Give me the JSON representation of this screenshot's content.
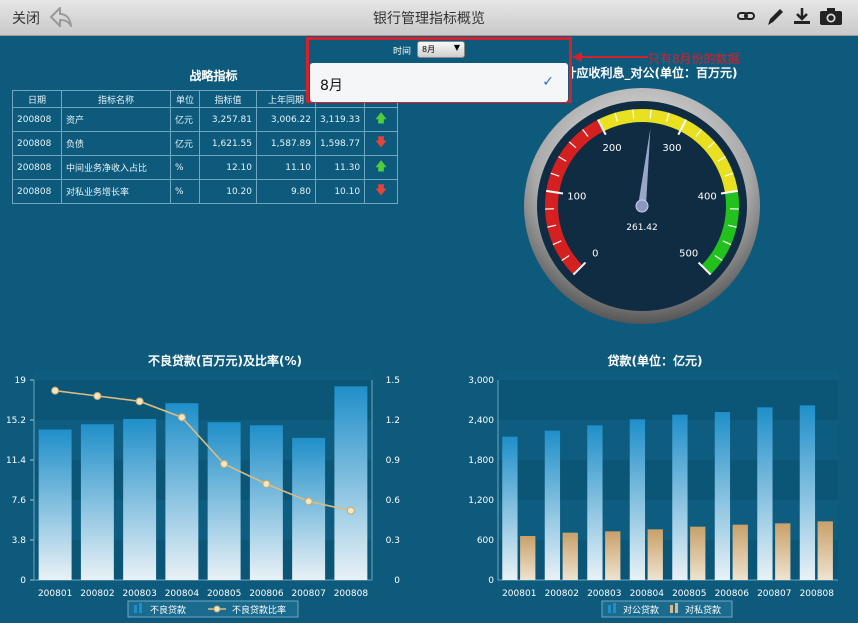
{
  "topbar": {
    "close_label": "关闭",
    "title": "银行管理指标概览",
    "icons": [
      "back-arrow-icon",
      "link-icon",
      "pencil-icon",
      "download-icon",
      "camera-icon"
    ]
  },
  "filter": {
    "label": "时间",
    "selected": "8月",
    "option": "8月",
    "annotation": "只有8月份的数据"
  },
  "indicators": {
    "title": "战略指标",
    "headers": [
      "日期",
      "指标名称",
      "单位",
      "指标值",
      "上年同期",
      ""
    ],
    "rows": [
      {
        "date": "200808",
        "name": "资产",
        "unit": "亿元",
        "value": "3,257.81",
        "last_year": "3,006.22",
        "extra": "3,119.33",
        "trend": "up"
      },
      {
        "date": "200808",
        "name": "负债",
        "unit": "亿元",
        "value": "1,621.55",
        "last_year": "1,587.89",
        "extra": "1,598.77",
        "trend": "down"
      },
      {
        "date": "200808",
        "name": "中间业务净收入占比",
        "unit": "%",
        "value": "12.10",
        "last_year": "11.10",
        "extra": "11.30",
        "trend": "up"
      },
      {
        "date": "200808",
        "name": "对私业务增长率",
        "unit": "%",
        "value": "10.20",
        "last_year": "9.80",
        "extra": "10.10",
        "trend": "down"
      }
    ]
  },
  "gauge": {
    "title": "累计应收利息_对公(单位：百万元)",
    "value": "261.42",
    "value_num": 261.42,
    "min": 0,
    "max": 500,
    "ticks": [
      "0",
      "100",
      "200",
      "300",
      "400",
      "500"
    ],
    "bands": [
      {
        "from": 0,
        "to": 200,
        "color": "#d42020"
      },
      {
        "from": 200,
        "to": 400,
        "color": "#e8e020"
      },
      {
        "from": 400,
        "to": 500,
        "color": "#22c11e"
      }
    ]
  },
  "chart_data": [
    {
      "type": "bar",
      "title": "不良贷款(百万元)及比率(%)",
      "categories": [
        "200801",
        "200802",
        "200803",
        "200804",
        "200805",
        "200806",
        "200807",
        "200808"
      ],
      "series": [
        {
          "name": "不良贷款",
          "type": "bar",
          "axis": "left",
          "values": [
            14.3,
            14.8,
            15.3,
            16.8,
            15.0,
            14.7,
            13.5,
            18.4
          ]
        },
        {
          "name": "不良贷款比率",
          "type": "line",
          "axis": "right",
          "values": [
            1.42,
            1.38,
            1.34,
            1.22,
            0.87,
            0.72,
            0.59,
            0.52
          ]
        }
      ],
      "y_left": {
        "ticks": [
          "0",
          "3.8",
          "7.6",
          "11.4",
          "15.2",
          "19"
        ],
        "ylim": [
          0,
          19
        ]
      },
      "y_right": {
        "ticks": [
          "0",
          "0.3",
          "0.6",
          "0.9",
          "1.2",
          "1.5"
        ],
        "ylim": [
          0,
          1.5
        ]
      },
      "colors": {
        "bar": "#1f8fc9",
        "line": "#d9bd82"
      }
    },
    {
      "type": "bar",
      "title": "贷款(单位：亿元)",
      "categories": [
        "200801",
        "200802",
        "200803",
        "200804",
        "200805",
        "200806",
        "200807",
        "200808"
      ],
      "series": [
        {
          "name": "对公贷款",
          "values": [
            2150,
            2240,
            2320,
            2410,
            2480,
            2520,
            2590,
            2620
          ]
        },
        {
          "name": "对私贷款",
          "values": [
            660,
            710,
            730,
            760,
            800,
            830,
            850,
            880
          ]
        }
      ],
      "y_left": {
        "ticks": [
          "0",
          "600",
          "1,200",
          "1,800",
          "2,400",
          "3,000"
        ],
        "ylim": [
          0,
          3000
        ]
      },
      "colors": {
        "corp": "#1f8fc9",
        "retail": "#d8b98a"
      }
    }
  ]
}
